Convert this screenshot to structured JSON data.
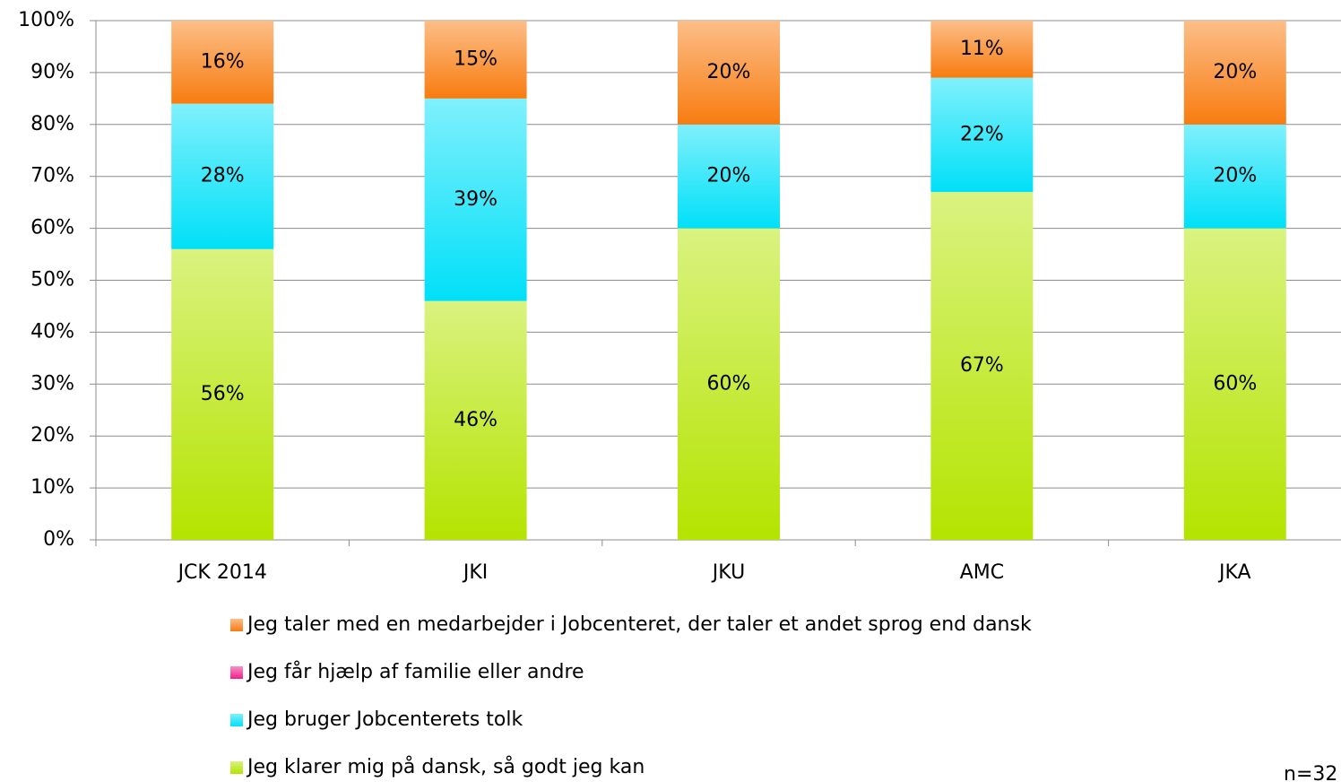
{
  "chart_data": {
    "type": "bar",
    "stacked": true,
    "categories": [
      "JCK 2014",
      "JKI",
      "JKU",
      "AMC",
      "JKA"
    ],
    "series": [
      {
        "name": "Jeg klarer mig på dansk, så godt jeg kan",
        "color": "#b4e400",
        "values": [
          56,
          46,
          60,
          67,
          60
        ],
        "value_labels": [
          "56%",
          "46%",
          "60%",
          "67%",
          "60%"
        ]
      },
      {
        "name": "Jeg bruger Jobcenterets tolk",
        "color": "#00e0f8",
        "values": [
          28,
          39,
          20,
          22,
          20
        ],
        "value_labels": [
          "28%",
          "39%",
          "20%",
          "22%",
          "20%"
        ]
      },
      {
        "name": "Jeg får hjælp af familie eller andre",
        "color": "#f0208c",
        "values": [
          0,
          0,
          0,
          0,
          0
        ]
      },
      {
        "name": "Jeg taler med en medarbejder i Jobcenteret, der taler et andet sprog end dansk",
        "color": "#f87c10",
        "values": [
          16,
          15,
          20,
          11,
          20
        ],
        "value_labels": [
          "16%",
          "15%",
          "20%",
          "11%",
          "20%"
        ]
      }
    ],
    "ylim": [
      0,
      100
    ],
    "yticks": [
      {
        "value": 0,
        "label": "0%"
      },
      {
        "value": 10,
        "label": "10%"
      },
      {
        "value": 20,
        "label": "20%"
      },
      {
        "value": 30,
        "label": "30%"
      },
      {
        "value": 40,
        "label": "40%"
      },
      {
        "value": 50,
        "label": "50%"
      },
      {
        "value": 60,
        "label": "60%"
      },
      {
        "value": 70,
        "label": "70%"
      },
      {
        "value": 80,
        "label": "80%"
      },
      {
        "value": 90,
        "label": "90%"
      },
      {
        "value": 100,
        "label": "100%"
      }
    ],
    "grid": true,
    "legend": "bottom",
    "annotation": "n=32"
  }
}
